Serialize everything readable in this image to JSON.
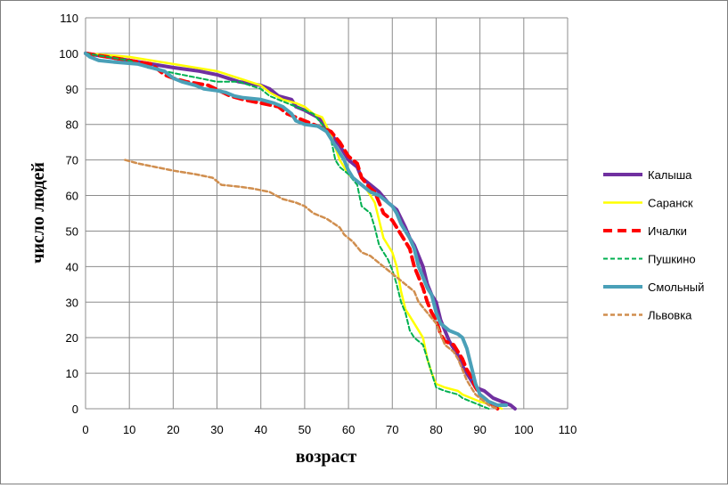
{
  "chart_data": {
    "type": "line",
    "title": "",
    "xlabel": "возраст",
    "ylabel": "число людей",
    "xlim": [
      0,
      110
    ],
    "ylim": [
      0,
      110
    ],
    "xticks": [
      0,
      10,
      20,
      30,
      40,
      50,
      60,
      70,
      80,
      90,
      100,
      110
    ],
    "yticks": [
      0,
      10,
      20,
      30,
      40,
      50,
      60,
      70,
      80,
      90,
      100,
      110
    ],
    "grid": true,
    "legend_position": "right",
    "series": [
      {
        "name": "Калыша",
        "color": "#7030a0",
        "style": "solid",
        "width": 4,
        "points": [
          [
            0,
            100
          ],
          [
            5,
            99
          ],
          [
            10,
            98
          ],
          [
            15,
            97
          ],
          [
            20,
            96
          ],
          [
            26,
            95
          ],
          [
            30,
            94
          ],
          [
            35,
            92
          ],
          [
            40,
            91
          ],
          [
            42,
            90
          ],
          [
            44,
            88
          ],
          [
            47,
            87
          ],
          [
            48,
            85
          ],
          [
            50,
            84
          ],
          [
            53,
            82
          ],
          [
            55,
            79
          ],
          [
            58,
            74
          ],
          [
            59,
            72
          ],
          [
            60,
            70
          ],
          [
            62,
            68
          ],
          [
            63,
            65
          ],
          [
            65,
            63
          ],
          [
            67,
            61
          ],
          [
            69,
            58
          ],
          [
            71,
            56
          ],
          [
            73,
            51
          ],
          [
            74,
            48
          ],
          [
            75,
            46
          ],
          [
            76,
            43
          ],
          [
            77,
            40
          ],
          [
            78,
            35
          ],
          [
            79,
            32
          ],
          [
            80,
            30
          ],
          [
            81,
            25
          ],
          [
            82,
            22
          ],
          [
            83,
            19
          ],
          [
            84,
            17
          ],
          [
            85,
            15
          ],
          [
            86,
            12
          ],
          [
            87,
            10
          ],
          [
            88,
            8
          ],
          [
            89,
            6
          ],
          [
            91,
            5
          ],
          [
            93,
            3
          ],
          [
            95,
            2
          ],
          [
            97,
            1
          ],
          [
            98,
            0
          ]
        ]
      },
      {
        "name": "Саранск",
        "color": "#ffff00",
        "style": "solid",
        "width": 2.5,
        "points": [
          [
            0,
            100
          ],
          [
            5,
            99.5
          ],
          [
            10,
            99
          ],
          [
            15,
            98
          ],
          [
            20,
            97
          ],
          [
            25,
            96
          ],
          [
            30,
            95
          ],
          [
            35,
            93
          ],
          [
            40,
            91
          ],
          [
            42,
            89
          ],
          [
            45,
            87
          ],
          [
            48,
            86
          ],
          [
            50,
            85
          ],
          [
            52,
            83
          ],
          [
            54,
            82
          ],
          [
            56,
            77
          ],
          [
            58,
            70
          ],
          [
            60,
            66
          ],
          [
            62,
            64
          ],
          [
            64,
            62
          ],
          [
            66,
            58
          ],
          [
            67,
            53
          ],
          [
            68,
            48
          ],
          [
            70,
            44
          ],
          [
            71,
            40
          ],
          [
            72,
            33
          ],
          [
            73,
            28
          ],
          [
            75,
            24
          ],
          [
            77,
            20
          ],
          [
            78,
            14
          ],
          [
            79,
            10
          ],
          [
            80,
            7
          ],
          [
            82,
            6
          ],
          [
            85,
            5
          ],
          [
            86,
            4
          ],
          [
            88,
            3
          ],
          [
            90,
            2
          ],
          [
            93,
            1
          ],
          [
            95,
            0
          ]
        ]
      },
      {
        "name": "Ичалки",
        "color": "#ff0000",
        "style": "dashed",
        "width": 4,
        "points": [
          [
            0,
            100
          ],
          [
            5,
            99
          ],
          [
            10,
            98
          ],
          [
            15,
            97
          ],
          [
            18,
            94
          ],
          [
            20,
            93
          ],
          [
            23,
            92
          ],
          [
            28,
            91
          ],
          [
            33,
            88
          ],
          [
            36,
            87
          ],
          [
            40,
            86
          ],
          [
            44,
            85
          ],
          [
            46,
            83
          ],
          [
            48,
            82
          ],
          [
            50,
            81
          ],
          [
            52,
            80
          ],
          [
            54,
            79
          ],
          [
            56,
            78
          ],
          [
            58,
            75
          ],
          [
            60,
            71
          ],
          [
            62,
            69
          ],
          [
            63,
            65
          ],
          [
            65,
            62
          ],
          [
            66,
            61
          ],
          [
            67,
            58
          ],
          [
            68,
            55
          ],
          [
            70,
            53
          ],
          [
            71,
            51
          ],
          [
            72,
            49
          ],
          [
            73,
            47
          ],
          [
            74,
            45
          ],
          [
            75,
            40
          ],
          [
            76,
            37
          ],
          [
            77,
            34
          ],
          [
            78,
            30
          ],
          [
            79,
            27
          ],
          [
            80,
            25
          ],
          [
            81,
            21
          ],
          [
            82,
            19
          ],
          [
            84,
            18
          ],
          [
            85,
            16
          ],
          [
            86,
            14
          ],
          [
            87,
            11
          ],
          [
            88,
            9
          ],
          [
            89,
            6
          ],
          [
            90,
            4
          ],
          [
            92,
            2
          ],
          [
            94,
            0
          ]
        ]
      },
      {
        "name": "Пушкино",
        "color": "#00b050",
        "style": "dashed",
        "width": 2,
        "points": [
          [
            0,
            100
          ],
          [
            5,
            99
          ],
          [
            10,
            98
          ],
          [
            14,
            96
          ],
          [
            18,
            95
          ],
          [
            22,
            94
          ],
          [
            26,
            93
          ],
          [
            30,
            92
          ],
          [
            35,
            92
          ],
          [
            40,
            90
          ],
          [
            42,
            88
          ],
          [
            44,
            87
          ],
          [
            46,
            86
          ],
          [
            48,
            85
          ],
          [
            50,
            84
          ],
          [
            52,
            83
          ],
          [
            54,
            80
          ],
          [
            56,
            76
          ],
          [
            57,
            70
          ],
          [
            58,
            68
          ],
          [
            60,
            66
          ],
          [
            62,
            63
          ],
          [
            63,
            57
          ],
          [
            65,
            55
          ],
          [
            66,
            51
          ],
          [
            67,
            46
          ],
          [
            68,
            44
          ],
          [
            69,
            42
          ],
          [
            70,
            39
          ],
          [
            71,
            35
          ],
          [
            72,
            30
          ],
          [
            73,
            27
          ],
          [
            74,
            22
          ],
          [
            75,
            20
          ],
          [
            76,
            19
          ],
          [
            77,
            18
          ],
          [
            78,
            14
          ],
          [
            79,
            10
          ],
          [
            80,
            6
          ],
          [
            82,
            5
          ],
          [
            85,
            4
          ],
          [
            86,
            3
          ],
          [
            88,
            2
          ],
          [
            90,
            1
          ],
          [
            92,
            0
          ]
        ]
      },
      {
        "name": "Смольный",
        "color": "#4aa0b8",
        "style": "solid",
        "width": 4,
        "points": [
          [
            0,
            100
          ],
          [
            1,
            99
          ],
          [
            3,
            98
          ],
          [
            7,
            97.5
          ],
          [
            12,
            97
          ],
          [
            15,
            96
          ],
          [
            18,
            95
          ],
          [
            20,
            93
          ],
          [
            22,
            92
          ],
          [
            25,
            91
          ],
          [
            27,
            90
          ],
          [
            30,
            89.5
          ],
          [
            32,
            89
          ],
          [
            34,
            88
          ],
          [
            36,
            87.5
          ],
          [
            40,
            87
          ],
          [
            43,
            86
          ],
          [
            45,
            85
          ],
          [
            47,
            83
          ],
          [
            48,
            81
          ],
          [
            50,
            80
          ],
          [
            53,
            79.5
          ],
          [
            55,
            78
          ],
          [
            56,
            76
          ],
          [
            57,
            74
          ],
          [
            58,
            72
          ],
          [
            59,
            70
          ],
          [
            60,
            67
          ],
          [
            61,
            65
          ],
          [
            63,
            63
          ],
          [
            65,
            61
          ],
          [
            67,
            60
          ],
          [
            69,
            58
          ],
          [
            70,
            57
          ],
          [
            71,
            55
          ],
          [
            72,
            52
          ],
          [
            73,
            50
          ],
          [
            74,
            48
          ],
          [
            75,
            45
          ],
          [
            76,
            40
          ],
          [
            77,
            37
          ],
          [
            78,
            34
          ],
          [
            79,
            32
          ],
          [
            80,
            27
          ],
          [
            81,
            24
          ],
          [
            83,
            22
          ],
          [
            85,
            21
          ],
          [
            86,
            20
          ],
          [
            87,
            17
          ],
          [
            88,
            12
          ],
          [
            89,
            7
          ],
          [
            90,
            4
          ],
          [
            92,
            2
          ],
          [
            94,
            1
          ],
          [
            96,
            1
          ]
        ]
      },
      {
        "name": "Львовка",
        "color": "#d08e4e",
        "style": "dashed",
        "width": 2.5,
        "points": [
          [
            9,
            70
          ],
          [
            12,
            69
          ],
          [
            16,
            68
          ],
          [
            20,
            67
          ],
          [
            25,
            66
          ],
          [
            29,
            65
          ],
          [
            31,
            63
          ],
          [
            35,
            62.5
          ],
          [
            38,
            62
          ],
          [
            42,
            61
          ],
          [
            45,
            59
          ],
          [
            48,
            58
          ],
          [
            50,
            57
          ],
          [
            52,
            55
          ],
          [
            55,
            53.5
          ],
          [
            58,
            51
          ],
          [
            59,
            49
          ],
          [
            61,
            47
          ],
          [
            63,
            44
          ],
          [
            65,
            43
          ],
          [
            67,
            41
          ],
          [
            69,
            39
          ],
          [
            71,
            37
          ],
          [
            73,
            35
          ],
          [
            75,
            33
          ],
          [
            76,
            30
          ],
          [
            78,
            27
          ],
          [
            80,
            24
          ],
          [
            81,
            21
          ],
          [
            82,
            18
          ],
          [
            84,
            16
          ],
          [
            85,
            14
          ],
          [
            86,
            11
          ],
          [
            87,
            8
          ],
          [
            88,
            6
          ],
          [
            89,
            4
          ],
          [
            90,
            3
          ],
          [
            92,
            1
          ],
          [
            94,
            0
          ]
        ]
      }
    ]
  }
}
